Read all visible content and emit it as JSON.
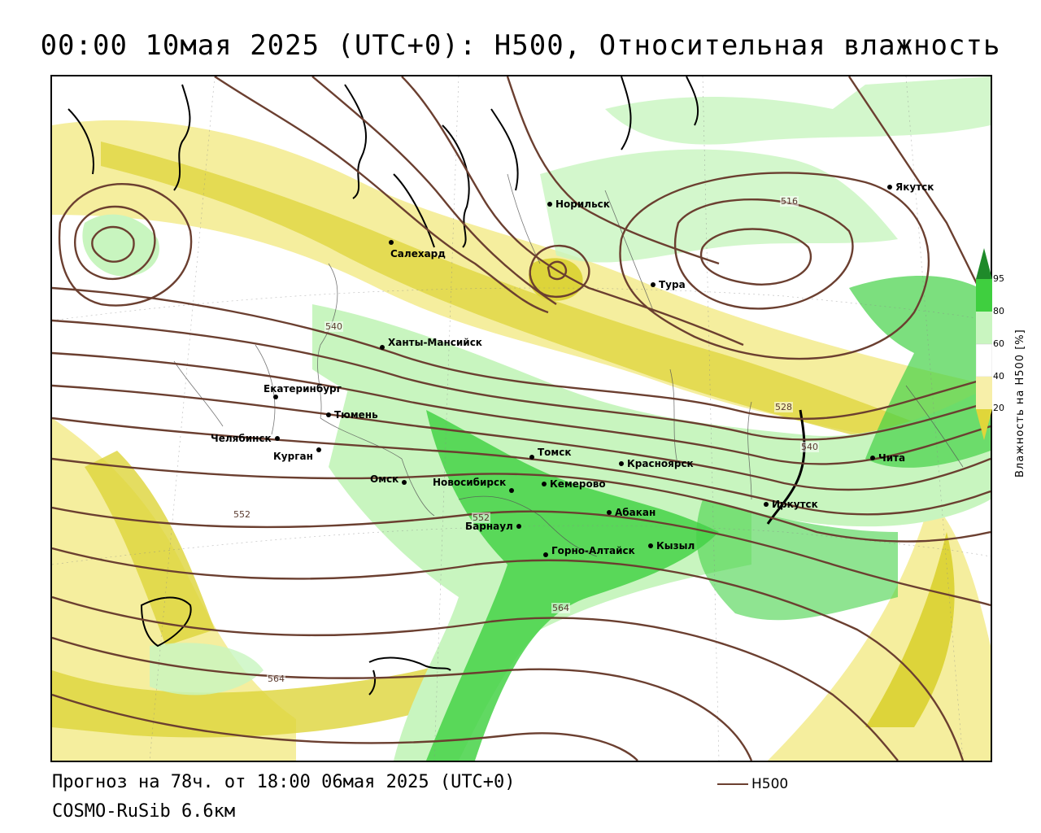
{
  "title": "00:00 10мая 2025 (UTC+0): H500, Относительная влажность",
  "cities": [
    {
      "name": "Норильск"
    },
    {
      "name": "Якутск"
    },
    {
      "name": "Салехард"
    },
    {
      "name": "Тура"
    },
    {
      "name": "Ханты-Мансийск"
    },
    {
      "name": "Екатеринбург"
    },
    {
      "name": "Тюмень"
    },
    {
      "name": "Челябинск"
    },
    {
      "name": "Курган"
    },
    {
      "name": "Томск"
    },
    {
      "name": "Красноярск"
    },
    {
      "name": "Чита"
    },
    {
      "name": "Омск"
    },
    {
      "name": "Новосибирск"
    },
    {
      "name": "Кемерово"
    },
    {
      "name": "Иркутск"
    },
    {
      "name": "Абакан"
    },
    {
      "name": "Барнаул"
    },
    {
      "name": "Кызыл"
    },
    {
      "name": "Горно-Алтайск"
    }
  ],
  "contour_labels": [
    "516",
    "540",
    "528",
    "540",
    "552",
    "552",
    "564",
    "564"
  ],
  "legend": {
    "title": "Влажность на H500 [%]",
    "ticks": [
      "95",
      "80",
      "60",
      "40",
      "20"
    ],
    "colors": {
      "c95": "#1f8a2a",
      "c80": "#3fcf3f",
      "c60": "#c9f5c0",
      "c40": "#ffffff",
      "c20": "#f7efa9",
      "c0": "#e0d63a"
    }
  },
  "footer": {
    "forecast": "Прогноз на 78ч. от 18:00 06мая 2025 (UTC+0)",
    "model": "COSMO-RuSib 6.6км",
    "line_legend": "H500"
  },
  "colors": {
    "contour": "#6b3f30",
    "yellow": "#f5ee9e",
    "dark_yellow": "#ddd43a",
    "light_green": "#c8f5bf",
    "green": "#45d247"
  }
}
